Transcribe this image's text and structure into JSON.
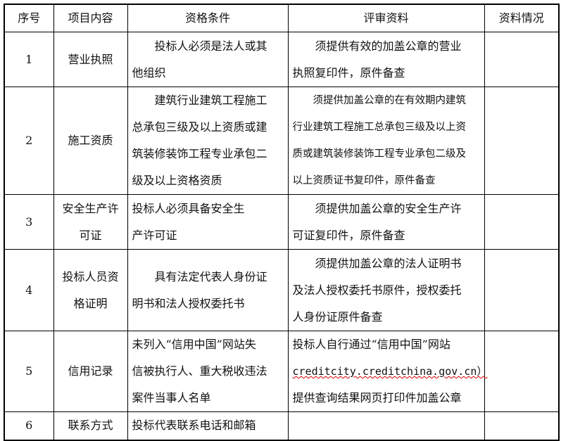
{
  "headers": [
    "序号",
    "项目内容",
    "资格条件",
    "评审资料",
    "资料情况"
  ],
  "rows": [
    {
      "no": "1",
      "item": [
        "营业执照"
      ],
      "cond": [
        "投标人必须是法人或其",
        "他组织"
      ],
      "review": [
        "须提供有效的加盖公章的营业",
        "执照复印件，原件备查"
      ],
      "status": ""
    },
    {
      "no": "2",
      "item": [
        "施工资质"
      ],
      "cond": [
        "建筑行业建筑工程施工",
        "总承包三级及以上资质或建",
        "筑装修装饰工程专业承包二",
        "级及以上资格资质"
      ],
      "review": [
        "须提供加盖公章的在有效期内建筑",
        "行业建筑工程施工总承包三级及以上资",
        "质或建筑装修装饰工程专业承包二级及",
        "以上资质证书复印件，原件备查"
      ],
      "status": ""
    },
    {
      "no": "3",
      "item": [
        "安全生产许",
        "可证"
      ],
      "cond": [
        "投标人必须具备安全生",
        "产许可证"
      ],
      "review": [
        "须提供加盖公章的安全生产许",
        "可证复印件，原件备查"
      ],
      "status": ""
    },
    {
      "no": "4",
      "item": [
        "投标人员资",
        "格证明"
      ],
      "cond": [
        "具有法定代表人身份证",
        "明书和法人授权委托书"
      ],
      "review": [
        "须提供加盖公章的法人证明书",
        "及法人授权委托书原件，授权委托",
        "人身份证原件备查"
      ],
      "status": ""
    },
    {
      "no": "5",
      "item": [
        "信用记录"
      ],
      "cond": [
        "未列入“信用中国”网站失",
        "信被执行人、重大税收违法",
        "案件当事人名单"
      ],
      "review": [
        "投标人自行通过“信用中国”网站",
        "creditcity.creditchina.gov.cn）",
        "提供查询结果网页打印件加盖公章"
      ],
      "status": ""
    },
    {
      "no": "6",
      "item": [
        "联系方式"
      ],
      "cond": [
        "投标代表联系电话和邮箱"
      ],
      "review": [],
      "status": ""
    }
  ]
}
